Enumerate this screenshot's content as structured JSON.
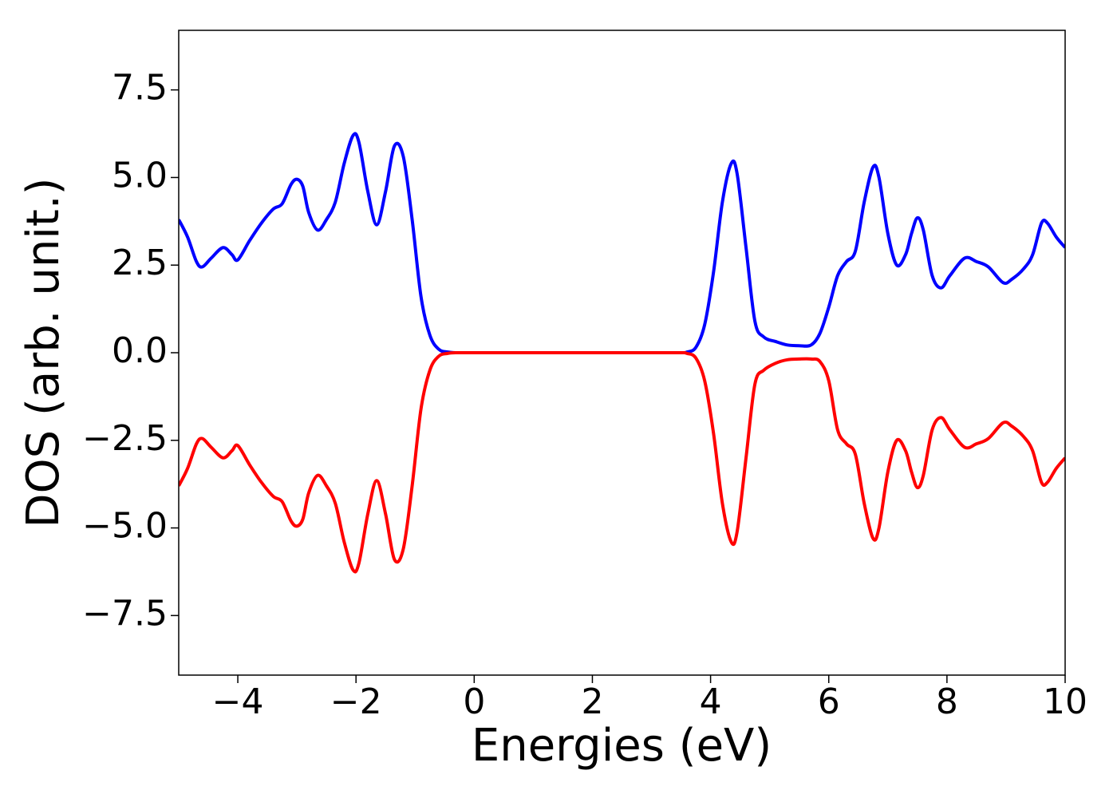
{
  "chart_data": {
    "type": "line",
    "xlabel": "Energies (eV)",
    "ylabel": "DOS (arb. unit.)",
    "x": [
      -5,
      -4.85,
      -4.7,
      -4.6,
      -4.45,
      -4.25,
      -4.1,
      -4.0,
      -3.8,
      -3.6,
      -3.4,
      -3.25,
      -3.1,
      -3.0,
      -2.9,
      -2.8,
      -2.65,
      -2.5,
      -2.35,
      -2.2,
      -2.05,
      -1.95,
      -1.8,
      -1.65,
      -1.5,
      -1.35,
      -1.2,
      -1.05,
      -0.9,
      -0.75,
      -0.6,
      -0.45,
      -0.3,
      0,
      1,
      2,
      3,
      3.5,
      3.6,
      3.75,
      3.9,
      4.05,
      4.2,
      4.35,
      4.45,
      4.6,
      4.75,
      4.9,
      5.1,
      5.3,
      5.5,
      5.7,
      5.85,
      6.0,
      6.15,
      6.3,
      6.45,
      6.6,
      6.75,
      6.85,
      7.0,
      7.15,
      7.3,
      7.4,
      7.5,
      7.6,
      7.75,
      7.9,
      8.05,
      8.3,
      8.5,
      8.7,
      8.95,
      9.1,
      9.3,
      9.45,
      9.6,
      9.7,
      9.85,
      10
    ],
    "series": [
      {
        "color": "#0000ff",
        "values": [
          3.8,
          3.3,
          2.6,
          2.45,
          2.7,
          3.0,
          2.8,
          2.65,
          3.2,
          3.7,
          4.1,
          4.25,
          4.8,
          4.95,
          4.75,
          4.0,
          3.5,
          3.8,
          4.3,
          5.4,
          6.2,
          6.0,
          4.6,
          3.65,
          4.6,
          5.9,
          5.6,
          3.8,
          1.6,
          0.5,
          0.1,
          0.02,
          0,
          0,
          0,
          0,
          0,
          0,
          0.02,
          0.15,
          0.8,
          2.3,
          4.3,
          5.4,
          5.1,
          3.0,
          0.9,
          0.45,
          0.32,
          0.22,
          0.2,
          0.22,
          0.55,
          1.3,
          2.2,
          2.6,
          2.9,
          4.3,
          5.3,
          5.0,
          3.4,
          2.5,
          2.8,
          3.4,
          3.85,
          3.5,
          2.2,
          1.85,
          2.2,
          2.7,
          2.6,
          2.45,
          2.0,
          2.1,
          2.4,
          2.8,
          3.7,
          3.7,
          3.3,
          3.0
        ]
      },
      {
        "color": "#ff0000",
        "values": [
          -3.8,
          -3.3,
          -2.6,
          -2.45,
          -2.7,
          -3.0,
          -2.8,
          -2.65,
          -3.2,
          -3.7,
          -4.1,
          -4.25,
          -4.8,
          -4.95,
          -4.75,
          -4.0,
          -3.5,
          -3.8,
          -4.3,
          -5.4,
          -6.2,
          -6.0,
          -4.6,
          -3.65,
          -4.6,
          -5.9,
          -5.6,
          -3.8,
          -1.6,
          -0.5,
          -0.1,
          -0.02,
          0,
          0,
          0,
          0,
          0,
          0,
          -0.02,
          -0.15,
          -0.8,
          -2.3,
          -4.3,
          -5.4,
          -5.1,
          -3.0,
          -0.9,
          -0.5,
          -0.3,
          -0.2,
          -0.18,
          -0.18,
          -0.25,
          -0.8,
          -2.2,
          -2.6,
          -2.9,
          -4.3,
          -5.3,
          -5.0,
          -3.4,
          -2.5,
          -2.8,
          -3.4,
          -3.85,
          -3.5,
          -2.2,
          -1.85,
          -2.2,
          -2.7,
          -2.6,
          -2.45,
          -2.0,
          -2.1,
          -2.4,
          -2.8,
          -3.7,
          -3.7,
          -3.3,
          -3.0
        ]
      }
    ],
    "xlim": [
      -5,
      10
    ],
    "ylim": [
      -9.2,
      9.2
    ],
    "xticks": [
      {
        "value": -4,
        "label": "−4"
      },
      {
        "value": -2,
        "label": "−2"
      },
      0,
      2,
      4,
      6,
      8,
      10
    ],
    "yticks": [
      {
        "value": -7.5,
        "label": "−7.5"
      },
      {
        "value": -5,
        "label": "−5.0"
      },
      {
        "value": -2.5,
        "label": "−2.5"
      },
      {
        "value": 0,
        "label": "0.0"
      },
      {
        "value": 2.5,
        "label": "2.5"
      },
      {
        "value": 5,
        "label": "5.0"
      },
      {
        "value": 7.5,
        "label": "7.5"
      }
    ],
    "grid": false
  }
}
